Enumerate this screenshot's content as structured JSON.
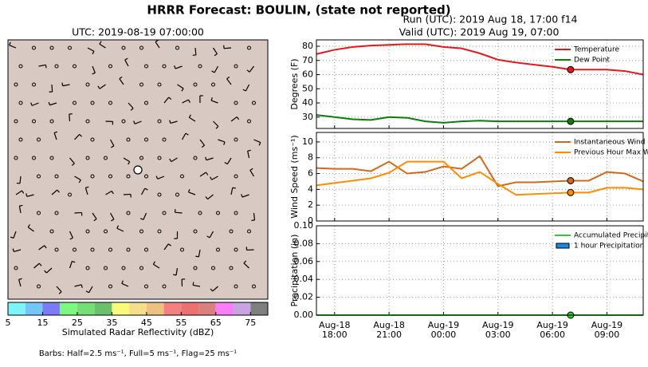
{
  "title": "HRRR Forecast: BOULIN, (state not reported)",
  "header": {
    "run": "Run (UTC): 2019 Aug 18, 17:00 f14",
    "valid": "Valid (UTC): 2019 Aug 19, 07:00"
  },
  "map": {
    "title": "UTC: 2019-08-19 07:00:00"
  },
  "colorbar": {
    "label": "Simulated Radar Reflectivity (dBZ)",
    "lim": [
      5,
      80
    ],
    "ticks": [
      5,
      15,
      25,
      35,
      45,
      55,
      65,
      75
    ],
    "colors": [
      "#7ff3fa",
      "#75c6f8",
      "#7b7bf7",
      "#7ef77e",
      "#75de75",
      "#6bc16b",
      "#fafa7a",
      "#f5df8a",
      "#edc281",
      "#f48080",
      "#ec7171",
      "#dc7f7f",
      "#f87ff8",
      "#c8a4e0",
      "#7f7f7f"
    ]
  },
  "barbs_note": "Barbs: Half=2.5 ms⁻¹, Full=5 ms⁻¹, Flag=25 ms⁻¹",
  "chart_data": [
    {
      "type": "line",
      "ylabel": "Degrees (F)",
      "ylim": [
        22,
        84.5
      ],
      "yticks": [
        30,
        40,
        50,
        60,
        70,
        80
      ],
      "grid": true,
      "legend": "upper right",
      "x": [
        "Aug-18 17:00",
        "Aug-18 18:00",
        "Aug-18 19:00",
        "Aug-18 20:00",
        "Aug-18 21:00",
        "Aug-18 22:00",
        "Aug-18 23:00",
        "Aug-19 00:00",
        "Aug-19 01:00",
        "Aug-19 02:00",
        "Aug-19 03:00",
        "Aug-19 04:00",
        "Aug-19 05:00",
        "Aug-19 06:00",
        "Aug-19 07:00",
        "Aug-19 08:00",
        "Aug-19 09:00",
        "Aug-19 10:00",
        "Aug-19 11:00"
      ],
      "xlim": [
        "Aug-18 17:00",
        "Aug-19 11:00"
      ],
      "xticks": [
        "Aug-18 18:00",
        "Aug-18 21:00",
        "Aug-19 00:00",
        "Aug-19 03:00",
        "Aug-19 06:00",
        "Aug-19 09:00"
      ],
      "highlight_x": "Aug-19 07:00",
      "series": [
        {
          "name": "Temperature",
          "color": "#e8161b",
          "values": [
            74.5,
            77.5,
            79.5,
            80.5,
            81,
            81.5,
            81.5,
            79.5,
            78.5,
            75,
            70.5,
            68.5,
            67,
            65.5,
            63.5,
            63.5,
            63.5,
            62.5,
            60
          ]
        },
        {
          "name": "Dew Point",
          "color": "#0a7f0a",
          "values": [
            31.5,
            30,
            28.5,
            28,
            30,
            29.5,
            27,
            26,
            27,
            27.5,
            27,
            27,
            27,
            27,
            27,
            27,
            27,
            27,
            27
          ]
        }
      ]
    },
    {
      "type": "line",
      "ylabel": "Wind Speed (ms⁻¹)",
      "ylim": [
        0,
        11.2
      ],
      "yticks": [
        0,
        2,
        4,
        6,
        8,
        10
      ],
      "grid": true,
      "legend": "upper right",
      "x": [
        "Aug-18 17:00",
        "Aug-18 18:00",
        "Aug-18 19:00",
        "Aug-18 20:00",
        "Aug-18 21:00",
        "Aug-18 22:00",
        "Aug-18 23:00",
        "Aug-19 00:00",
        "Aug-19 01:00",
        "Aug-19 02:00",
        "Aug-19 03:00",
        "Aug-19 04:00",
        "Aug-19 05:00",
        "Aug-19 06:00",
        "Aug-19 07:00",
        "Aug-19 08:00",
        "Aug-19 09:00",
        "Aug-19 10:00",
        "Aug-19 11:00"
      ],
      "xlim": [
        "Aug-18 17:00",
        "Aug-19 11:00"
      ],
      "xticks": [
        "Aug-18 18:00",
        "Aug-18 21:00",
        "Aug-19 00:00",
        "Aug-19 03:00",
        "Aug-19 06:00",
        "Aug-19 09:00"
      ],
      "highlight_x": "Aug-19 07:00",
      "series": [
        {
          "name": "Instantaneous Wind Gust",
          "color": "#d2691e",
          "values": [
            6.7,
            6.6,
            6.6,
            6.3,
            7.5,
            6.0,
            6.2,
            6.9,
            6.6,
            8.2,
            4.4,
            4.9,
            4.9,
            5.0,
            5.1,
            5.1,
            6.2,
            6.0,
            5.0
          ]
        },
        {
          "name": "Previous Hour Max Wind",
          "color": "#ff8c00",
          "values": [
            4.5,
            4.8,
            5.1,
            5.4,
            6.1,
            7.5,
            7.5,
            7.5,
            5.4,
            6.2,
            4.7,
            3.3,
            3.4,
            3.5,
            3.6,
            3.6,
            4.2,
            4.2,
            4.0
          ]
        }
      ]
    },
    {
      "type": "line",
      "ylabel": "Precipitation (in)",
      "ylim": [
        0,
        0.1
      ],
      "yticks": [
        {
          "value": 0,
          "label": "0.00"
        },
        {
          "value": 0.02,
          "label": "0.02"
        },
        {
          "value": 0.04,
          "label": "0.04"
        },
        {
          "value": 0.06,
          "label": "0.06"
        },
        {
          "value": 0.08,
          "label": "0.08"
        },
        {
          "value": 0.1,
          "label": "0.10"
        }
      ],
      "grid": true,
      "legend": "upper right",
      "x": [
        "Aug-18 17:00",
        "Aug-18 18:00",
        "Aug-18 19:00",
        "Aug-18 20:00",
        "Aug-18 21:00",
        "Aug-18 22:00",
        "Aug-18 23:00",
        "Aug-19 00:00",
        "Aug-19 01:00",
        "Aug-19 02:00",
        "Aug-19 03:00",
        "Aug-19 04:00",
        "Aug-19 05:00",
        "Aug-19 06:00",
        "Aug-19 07:00",
        "Aug-19 08:00",
        "Aug-19 09:00",
        "Aug-19 10:00",
        "Aug-19 11:00"
      ],
      "xlim": [
        "Aug-18 17:00",
        "Aug-19 11:00"
      ],
      "xticks": [
        {
          "value": "Aug-18 18:00",
          "label": [
            "Aug-18",
            "18:00"
          ]
        },
        {
          "value": "Aug-18 21:00",
          "label": [
            "Aug-18",
            "21:00"
          ]
        },
        {
          "value": "Aug-19 00:00",
          "label": [
            "Aug-19",
            "00:00"
          ]
        },
        {
          "value": "Aug-19 03:00",
          "label": [
            "Aug-19",
            "03:00"
          ]
        },
        {
          "value": "Aug-19 06:00",
          "label": [
            "Aug-19",
            "06:00"
          ]
        },
        {
          "value": "Aug-19 09:00",
          "label": [
            "Aug-19",
            "09:00"
          ]
        }
      ],
      "highlight_x": "Aug-19 07:00",
      "series": [
        {
          "name": "Accumulated Precipitation",
          "color": "#2ecc2e",
          "values": [
            0,
            0,
            0,
            0,
            0,
            0,
            0,
            0,
            0,
            0,
            0,
            0,
            0,
            0,
            0,
            0,
            0,
            0,
            0
          ]
        },
        {
          "name": "1 hour Precipitation",
          "type": "bar",
          "color": "#1e88e5",
          "values": [
            0,
            0,
            0,
            0,
            0,
            0,
            0,
            0,
            0,
            0,
            0,
            0,
            0,
            0,
            0,
            0,
            0,
            0,
            0
          ]
        }
      ]
    }
  ]
}
